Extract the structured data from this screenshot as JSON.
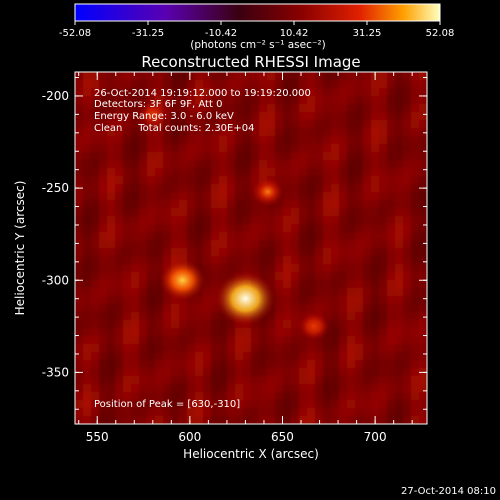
{
  "chart_data": {
    "type": "heatmap",
    "title": "Reconstructed RHESSI Image",
    "xlabel": "Heliocentric X (arcsec)",
    "ylabel": "Heliocentric Y (arcsec)",
    "xlim": [
      538,
      728
    ],
    "ylim": [
      -378,
      -187
    ],
    "x_ticks": [
      "550",
      "600",
      "650",
      "700"
    ],
    "x_tick_values": [
      550,
      600,
      650,
      700
    ],
    "y_ticks": [
      "-200",
      "-250",
      "-300",
      "-350"
    ],
    "y_tick_values": [
      -200,
      -250,
      -300,
      -350
    ],
    "colorbar": {
      "unit_label": "(photons cm⁻² s⁻¹ asec⁻²)",
      "ticks": [
        "-52.08",
        "-31.25",
        "-10.42",
        "10.42",
        "31.25",
        "52.08"
      ],
      "tick_values": [
        -52.08,
        -31.25,
        -10.42,
        10.42,
        31.25,
        52.08
      ],
      "range": [
        -52.08,
        52.08
      ]
    },
    "annotations": [
      "26-Oct-2014 19:19:12.000 to 19:19:20.000",
      "Detectors: 3F 6F 9F, Att 0",
      "Energy Range: 3.0 - 6.0 keV",
      "Clean     Total counts: 2.30E+04"
    ],
    "peak_label": "Position of Peak = [630,-310]",
    "sources": [
      {
        "x": 630,
        "y": -310,
        "peak": 52.08
      },
      {
        "x": 596,
        "y": -300,
        "peak": 34
      },
      {
        "x": 642,
        "y": -252,
        "peak": 16
      },
      {
        "x": 667,
        "y": -325,
        "peak": 14
      },
      {
        "x": 580,
        "y": -210,
        "peak": 9
      }
    ]
  },
  "timestamp": "27-Oct-2014 08:10"
}
